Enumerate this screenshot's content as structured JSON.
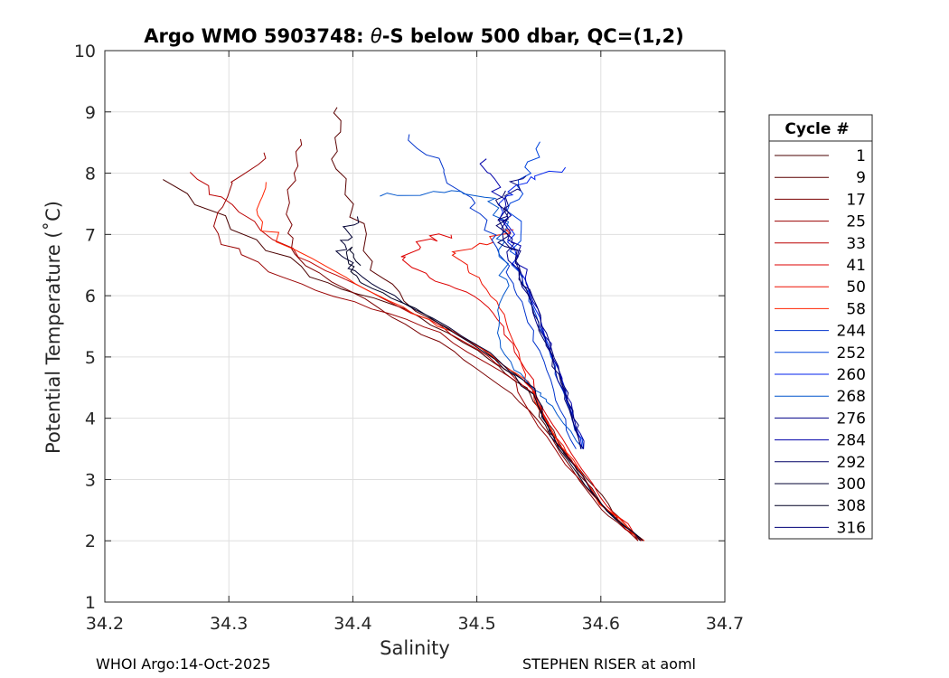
{
  "chart_data": {
    "type": "line",
    "title_prefix": "Argo WMO 5903748: ",
    "title_theta": "θ",
    "title_suffix": "-S below 500 dbar,  QC=(1,2)",
    "xlabel": "Salinity",
    "ylabel": "Potential Temperature (˚C)",
    "xlim": [
      34.2,
      34.7
    ],
    "ylim": [
      1,
      10
    ],
    "xticks": [
      34.2,
      34.3,
      34.4,
      34.5,
      34.6,
      34.7
    ],
    "xtick_labels": [
      "34.2",
      "34.3",
      "34.4",
      "34.5",
      "34.6",
      "34.7"
    ],
    "yticks": [
      1,
      2,
      3,
      4,
      5,
      6,
      7,
      8,
      9,
      10
    ],
    "ytick_labels": [
      "1",
      "2",
      "3",
      "4",
      "5",
      "6",
      "7",
      "8",
      "9",
      "10"
    ],
    "grid": true,
    "legend_title": "Cycle #",
    "legend_position": "outside-right",
    "series": [
      {
        "name": "1",
        "color": "#4a0000",
        "x": [
          34.25,
          34.32,
          34.38,
          34.44,
          34.5,
          34.54,
          34.555,
          34.575,
          34.605,
          34.635
        ],
        "y": [
          7.9,
          6.9,
          6.2,
          5.8,
          5.1,
          4.5,
          3.9,
          3.3,
          2.6,
          2.0
        ]
      },
      {
        "name": "9",
        "color": "#5a0000",
        "x": [
          34.39,
          34.385,
          34.4,
          34.41,
          34.44,
          34.5,
          34.545,
          34.56,
          34.6,
          34.63
        ],
        "y": [
          9.1,
          8.4,
          7.5,
          6.6,
          5.9,
          5.2,
          4.5,
          3.8,
          2.6,
          2.0
        ]
      },
      {
        "name": "17",
        "color": "#7a0000",
        "x": [
          34.36,
          34.35,
          34.35,
          34.36,
          34.42,
          34.48,
          34.53,
          34.56,
          34.6,
          34.632
        ],
        "y": [
          8.6,
          8.0,
          7.2,
          6.5,
          5.8,
          5.1,
          4.4,
          3.7,
          2.5,
          2.0
        ]
      },
      {
        "name": "25",
        "color": "#990000",
        "x": [
          34.33,
          34.3,
          34.29,
          34.33,
          34.4,
          34.47,
          34.53,
          34.555,
          34.6,
          34.63
        ],
        "y": [
          8.3,
          7.8,
          7.0,
          6.4,
          5.9,
          5.4,
          4.6,
          3.7,
          2.6,
          2.0
        ]
      },
      {
        "name": "33",
        "color": "#bb0000",
        "x": [
          34.27,
          34.3,
          34.35,
          34.4,
          34.46,
          34.51,
          34.545,
          34.565,
          34.605,
          34.633
        ],
        "y": [
          8.0,
          7.5,
          6.8,
          6.2,
          5.6,
          5.0,
          4.4,
          3.6,
          2.5,
          2.0
        ]
      },
      {
        "name": "41",
        "color": "#dd0000",
        "x": [
          34.48,
          34.46,
          34.44,
          34.46,
          34.5,
          34.52,
          34.54,
          34.56,
          34.6,
          34.634
        ],
        "y": [
          7.0,
          6.9,
          6.6,
          6.3,
          6.0,
          5.5,
          4.8,
          3.9,
          2.7,
          2.0
        ]
      },
      {
        "name": "50",
        "color": "#ee1100",
        "x": [
          34.53,
          34.51,
          34.48,
          34.5,
          34.52,
          34.53,
          34.54,
          34.56,
          34.6,
          34.633
        ],
        "y": [
          7.1,
          6.9,
          6.7,
          6.3,
          5.8,
          5.2,
          4.6,
          3.8,
          2.6,
          2.0
        ]
      },
      {
        "name": "58",
        "color": "#ff2200",
        "x": [
          34.33,
          34.32,
          34.35,
          34.4,
          34.45,
          34.5,
          34.54,
          34.56,
          34.6,
          34.635
        ],
        "y": [
          7.9,
          7.3,
          6.8,
          6.2,
          5.7,
          5.2,
          4.6,
          3.8,
          2.6,
          2.0
        ]
      },
      {
        "name": "244",
        "color": "#0033cc",
        "x": [
          34.445,
          34.47,
          34.495,
          34.51,
          34.525,
          34.535,
          34.55,
          34.565,
          34.58
        ],
        "y": [
          8.6,
          8.1,
          7.5,
          7.0,
          6.4,
          5.9,
          5.1,
          4.3,
          3.5
        ]
      },
      {
        "name": "252",
        "color": "#0044dd",
        "x": [
          34.55,
          34.54,
          34.53,
          34.53,
          34.535,
          34.545,
          34.56,
          34.572,
          34.586
        ],
        "y": [
          8.5,
          8.0,
          7.6,
          7.0,
          6.4,
          5.8,
          5.0,
          4.3,
          3.5
        ]
      },
      {
        "name": "260",
        "color": "#0022ee",
        "x": [
          34.57,
          34.54,
          34.52,
          34.525,
          34.535,
          34.548,
          34.562,
          34.574,
          34.585
        ],
        "y": [
          8.1,
          7.9,
          7.6,
          7.0,
          6.4,
          5.8,
          5.0,
          4.3,
          3.5
        ]
      },
      {
        "name": "268",
        "color": "#0055cc",
        "x": [
          34.42,
          34.47,
          34.51,
          34.52,
          34.52,
          34.52,
          34.515,
          34.53,
          34.55,
          34.56,
          34.586
        ],
        "y": [
          7.65,
          7.7,
          7.6,
          7.2,
          6.6,
          6.0,
          5.4,
          4.8,
          4.4,
          4.2,
          3.5
        ]
      },
      {
        "name": "276",
        "color": "#000088",
        "x": [
          34.52,
          34.52,
          34.525,
          34.535,
          34.548,
          34.562,
          34.574,
          34.584
        ],
        "y": [
          7.5,
          7.2,
          6.8,
          6.3,
          5.6,
          4.9,
          4.2,
          3.5
        ]
      },
      {
        "name": "284",
        "color": "#0000aa",
        "x": [
          34.505,
          34.515,
          34.522,
          34.53,
          34.54,
          34.553,
          34.566,
          34.578,
          34.586
        ],
        "y": [
          8.2,
          7.8,
          7.3,
          6.8,
          6.2,
          5.5,
          4.8,
          4.1,
          3.5
        ]
      },
      {
        "name": "292",
        "color": "#000066",
        "x": [
          34.52,
          34.52,
          34.523,
          34.533,
          34.546,
          34.56,
          34.572,
          34.584
        ],
        "y": [
          7.7,
          7.3,
          6.9,
          6.4,
          5.7,
          5.0,
          4.3,
          3.5
        ]
      },
      {
        "name": "300",
        "color": "#000033",
        "x": [
          34.4,
          34.395,
          34.392,
          34.4,
          34.44,
          34.5,
          34.545,
          34.56,
          34.6,
          34.632
        ],
        "y": [
          7.3,
          7.0,
          6.7,
          6.4,
          5.9,
          5.2,
          4.5,
          3.7,
          2.6,
          2.0
        ]
      },
      {
        "name": "308",
        "color": "#000022",
        "x": [
          34.405,
          34.395,
          34.4,
          34.405,
          34.45,
          34.505,
          34.545,
          34.565,
          34.605,
          34.634
        ],
        "y": [
          6.5,
          6.8,
          6.4,
          6.2,
          5.8,
          5.1,
          4.4,
          3.5,
          2.5,
          2.0
        ]
      },
      {
        "name": "316",
        "color": "#000077",
        "x": [
          34.535,
          34.528,
          34.522,
          34.53,
          34.542,
          34.555,
          34.567,
          34.579,
          34.586
        ],
        "y": [
          8.0,
          7.7,
          7.2,
          6.7,
          6.1,
          5.4,
          4.7,
          4.0,
          3.5
        ]
      }
    ]
  },
  "footer": {
    "left": "WHOI Argo:14-Oct-2025",
    "right": "STEPHEN RISER at aoml"
  }
}
